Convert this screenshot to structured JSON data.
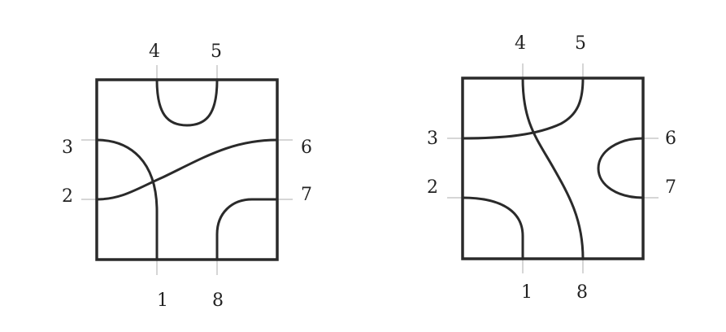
{
  "tiles": [
    {
      "name": "left-tile",
      "ports": {
        "p1": "1",
        "p2": "2",
        "p3": "3",
        "p4": "4",
        "p5": "5",
        "p6": "6",
        "p7": "7",
        "p8": "8"
      }
    },
    {
      "name": "right-tile",
      "ports": {
        "p1": "1",
        "p2": "2",
        "p3": "3",
        "p4": "4",
        "p5": "5",
        "p6": "6",
        "p7": "7",
        "p8": "8"
      }
    }
  ],
  "colors": {
    "line": "#2a2a2a",
    "tick": "#d6d6d6",
    "background": "#ffffff"
  }
}
